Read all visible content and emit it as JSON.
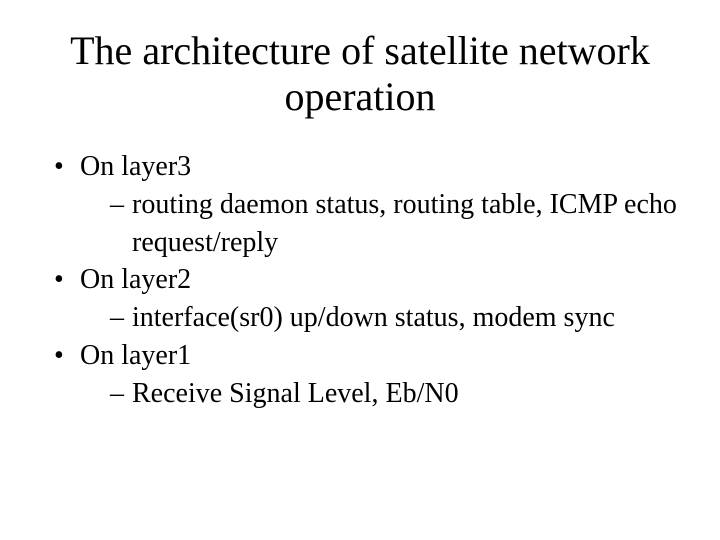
{
  "title": "The architecture of satellite network operation",
  "bullets": [
    {
      "text": "On layer3",
      "sub": [
        "routing daemon status, routing table, ICMP echo request/reply"
      ]
    },
    {
      "text": "On layer2",
      "sub": [
        "interface(sr0) up/down status, modem sync"
      ]
    },
    {
      "text": "On layer1",
      "sub": [
        "Receive Signal Level, Eb/N0"
      ]
    }
  ],
  "colors": {
    "background": "#ffffff",
    "text": "#000000"
  },
  "typography": {
    "family": "Times New Roman",
    "title_size_pt": 40,
    "body_size_pt": 28
  }
}
